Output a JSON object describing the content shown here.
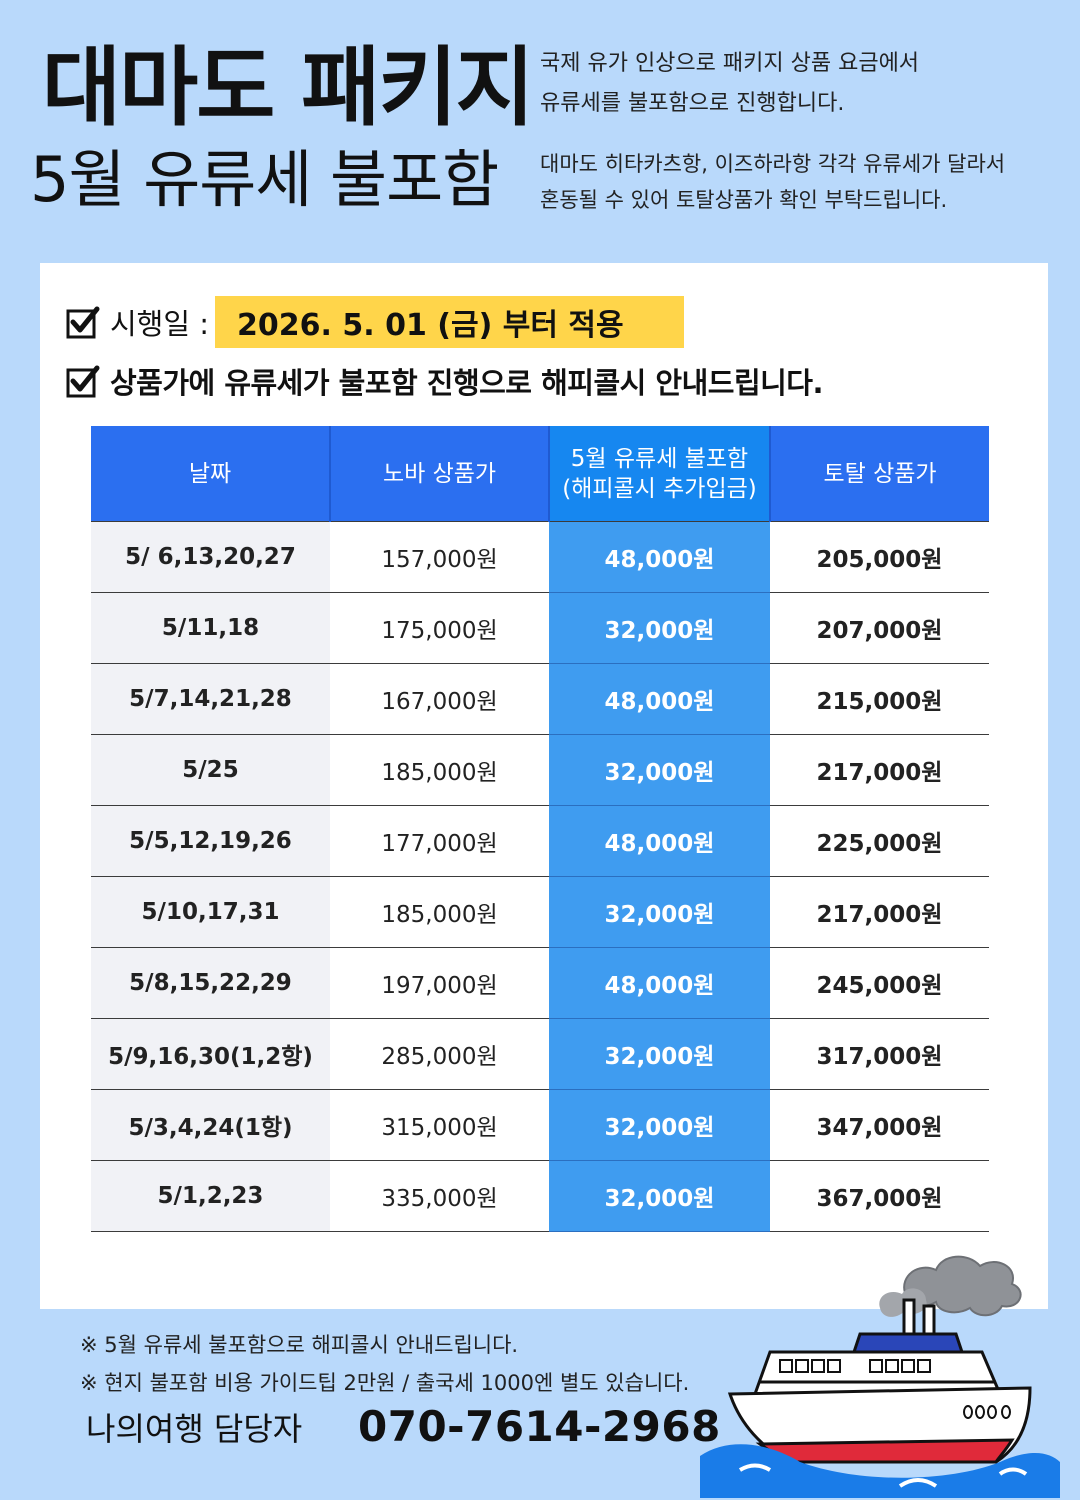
{
  "header": {
    "title": "대마도 패키지",
    "subtitle": "5월 유류세 불포함",
    "intro_line1": "국제 유가 인상으로 패키지 상품 요금에서",
    "intro_line2": "유류세를 불포함으로 진행합니다.",
    "intro_line3": "대마도 히타카츠항, 이즈하라항 각각  유류세가 달라서",
    "intro_line4": "혼동될 수 있어  토탈상품가  확인 부탁드립니다."
  },
  "notice": {
    "effective_label": "시행일 :",
    "effective_date": "2026. 5. 01 (금) 부터 적용",
    "happy_call": "상품가에 유류세가 불포함 진행으로 해피콜시 안내드립니다."
  },
  "table": {
    "headers": [
      "날짜",
      "노바 상품가",
      "5월 유류세 불포함",
      "(해피콜시 추가입금)",
      "토탈 상품가"
    ],
    "rows": [
      [
        "5/ 6,13,20,27",
        "157,000원",
        "48,000원",
        "205,000원"
      ],
      [
        "5/11,18",
        "175,000원",
        "32,000원",
        "207,000원"
      ],
      [
        "5/7,14,21,28",
        "167,000원",
        "48,000원",
        "215,000원"
      ],
      [
        "5/25",
        "185,000원",
        "32,000원",
        "217,000원"
      ],
      [
        "5/5,12,19,26",
        "177,000원",
        "48,000원",
        "225,000원"
      ],
      [
        "5/10,17,31",
        "185,000원",
        "32,000원",
        "217,000원"
      ],
      [
        "5/8,15,22,29",
        "197,000원",
        "48,000원",
        "245,000원"
      ],
      [
        "5/9,16,30(1,2항)",
        "285,000원",
        "32,000원",
        "317,000원"
      ],
      [
        "5/3,4,24(1항)",
        "315,000원",
        "32,000원",
        "347,000원"
      ],
      [
        "5/1,2,23",
        "335,000원",
        "32,000원",
        "367,000원"
      ]
    ]
  },
  "footer": {
    "note1": "※ 5월 유류세 불포함으로 해피콜시 안내드립니다.",
    "note2": "※ 현지 불포함 비용  가이드팁 2만원 / 출국세 1000엔 별도 있습니다.",
    "contact_label": "나의여행 담당자",
    "phone": "070-7614-2968"
  },
  "icons": {
    "check": "checkbox-checked-icon",
    "ship": "ferry-ship-illustration"
  },
  "colors": {
    "background": "#b9d9fb",
    "header_blue": "#2b6ff0",
    "fuel_column": "#3f9cf0",
    "highlight": "#ffd54a"
  }
}
